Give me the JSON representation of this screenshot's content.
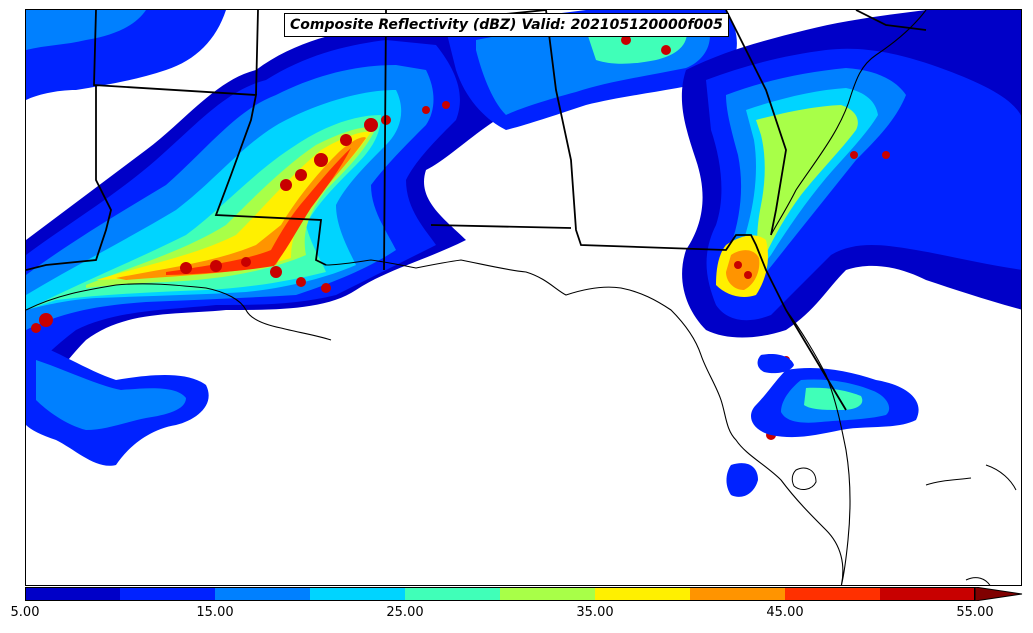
{
  "title": "Composite Reflectivity (dBZ) Valid: 202105120000f005",
  "colorbar": {
    "min": 5,
    "max": 55,
    "extend": "max",
    "bins": [
      {
        "from": 5,
        "to": 10,
        "color": "#0000c8"
      },
      {
        "from": 10,
        "to": 15,
        "color": "#0022ff"
      },
      {
        "from": 15,
        "to": 20,
        "color": "#0080ff"
      },
      {
        "from": 20,
        "to": 25,
        "color": "#00d4ff"
      },
      {
        "from": 25,
        "to": 30,
        "color": "#40ffb8"
      },
      {
        "from": 30,
        "to": 35,
        "color": "#a8ff48"
      },
      {
        "from": 35,
        "to": 40,
        "color": "#fff000"
      },
      {
        "from": 40,
        "to": 45,
        "color": "#ff9400"
      },
      {
        "from": 45,
        "to": 50,
        "color": "#ff3000"
      },
      {
        "from": 50,
        "to": 55,
        "color": "#c80000"
      }
    ],
    "extend_color": "#800000",
    "tick_labels": [
      "5.00",
      "15.00",
      "25.00",
      "35.00",
      "45.00",
      "55.00"
    ]
  }
}
